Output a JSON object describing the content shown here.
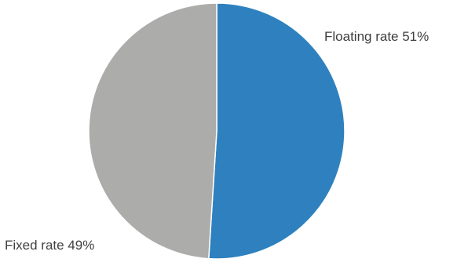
{
  "chart_data": {
    "type": "pie",
    "title": "",
    "legend": "none",
    "slices": [
      {
        "label": "Floating rate",
        "value": 51,
        "display": "Floating rate 51%",
        "color": "#2e81be"
      },
      {
        "label": "Fixed rate",
        "value": 49,
        "display": "Fixed rate 49%",
        "color": "#acacab"
      }
    ]
  }
}
